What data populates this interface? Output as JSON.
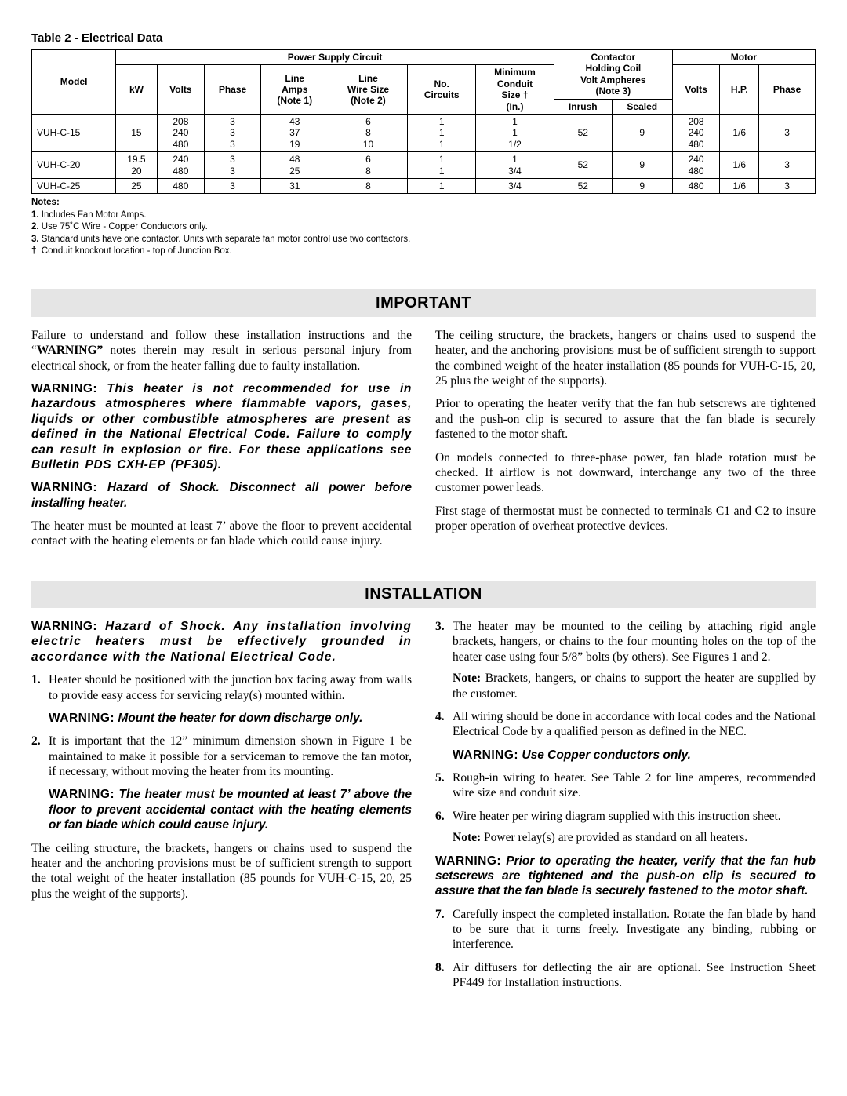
{
  "table": {
    "title": "Table 2 - Electrical Data",
    "headers": {
      "model": "Model",
      "psc": "Power Supply Circuit",
      "kw": "kW",
      "volts": "Volts",
      "phase": "Phase",
      "lineAmps": "Line\nAmps\n(Note 1)",
      "lineWire": "Line\nWire Size\n(Note 2)",
      "circuits": "No.\nCircuits",
      "conduit": "Minimum\nConduit\nSize †\n(In.)",
      "contactor": "Contactor\nHolding Coil\nVolt Ampheres\n(Note 3)",
      "inrush": "Inrush",
      "sealed": "Sealed",
      "motor": "Motor",
      "mvolts": "Volts",
      "hp": "H.P.",
      "mphase": "Phase"
    },
    "rows": [
      {
        "model": "VUH-C-15",
        "kw": "15",
        "volts": "208\n240\n480",
        "phase": "3\n3\n3",
        "amps": "43\n37\n19",
        "wire": "6\n8\n10",
        "circuits": "1\n1\n1",
        "conduit": "1\n1\n1/2",
        "inrush": "52",
        "sealed": "9",
        "mvolts": "208\n240\n480",
        "hp": "1/6",
        "mphase": "3"
      },
      {
        "model": "VUH-C-20",
        "kw": "19.5\n20",
        "volts": "240\n480",
        "phase": "3\n3",
        "amps": "48\n25",
        "wire": "6\n8",
        "circuits": "1\n1",
        "conduit": "1\n3/4",
        "inrush": "52",
        "sealed": "9",
        "mvolts": "240\n480",
        "hp": "1/6",
        "mphase": "3"
      },
      {
        "model": "VUH-C-25",
        "kw": "25",
        "volts": "480",
        "phase": "3",
        "amps": "31",
        "wire": "8",
        "circuits": "1",
        "conduit": "3/4",
        "inrush": "52",
        "sealed": "9",
        "mvolts": "480",
        "hp": "1/6",
        "mphase": "3"
      }
    ]
  },
  "notes": {
    "title": "Notes:",
    "n1": "Includes Fan Motor Amps.",
    "n2": "Use 75˚C Wire - Copper Conductors only.",
    "n3": "Standard units have one contactor. Units with separate fan motor control use two contactors.",
    "dagger": "Conduit knockout location - top of Junction Box."
  },
  "banners": {
    "important": "IMPORTANT",
    "installation": "INSTALLATION"
  },
  "labels": {
    "warning": "WARNING:",
    "note": "Note:"
  },
  "important": {
    "p1a": "Failure to understand and follow these installation instructions and the  “",
    "p1b": "WARNING”",
    "p1c": "  notes therein may result in serious personal injury from electrical shock, or from the heater falling due to faulty installation.",
    "w1": " This heater is not recommended for use in hazardous atmospheres where flammable vapors, gases, liquids or other combustible atmospheres are present as defined in the National Electrical Code. Failure to comply can result in explosion or fire. For these applications see Bulletin PDS CXH-EP (PF305).",
    "w2": " Hazard of Shock. Disconnect all power before installing heater.",
    "p2": "The heater must be mounted at least 7’ above the floor to prevent accidental contact with the heating elements or fan blade which could cause injury.",
    "p3": "The ceiling structure, the brackets, hangers or chains used to suspend the heater, and the anchoring provisions must be of sufficient strength to support the combined weight of the heater installation (85 pounds for VUH-C-15, 20, 25 plus the weight of the supports).",
    "p4": "Prior to operating the heater verify that the fan hub setscrews are tightened and the push-on clip is secured to assure that the fan blade is securely fastened to the motor shaft.",
    "p5": "On models connected to three-phase power, fan blade rotation must be checked. If airflow is not downward, interchange any two of the three customer power leads.",
    "p6": "First stage of thermostat must be connected to terminals C1 and C2 to insure proper operation of overheat protective devices."
  },
  "install": {
    "w_top": " Hazard of Shock. Any installation involving electric heaters must be effectively grounded in accordance with the National Electrical Code.",
    "li1": "Heater should be positioned with the junction box facing away from walls to provide easy access for servicing relay(s) mounted within.",
    "w_li1": " Mount the heater for down discharge only.",
    "li2": "It is important that the 12” minimum dimension shown in Figure 1 be maintained to make it possible for a serviceman to remove the fan motor, if necessary, without moving the heater from its mounting.",
    "w_li2": " The heater must be mounted at least 7’ above the floor to prevent accidental contact with the heating elements or fan blade which could cause injury.",
    "p_mid": "The ceiling structure, the brackets, hangers or chains used to suspend the heater and the anchoring provisions must be of sufficient strength to support the total weight of the heater installation (85 pounds for VUH-C-15, 20, 25 plus the weight of the supports).",
    "li3": "The heater may be mounted to the ceiling by attaching rigid angle brackets, hangers, or chains to the four mounting holes on the top of the heater case using four 5/8” bolts (by others). See Figures 1 and 2.",
    "note3": " Brackets, hangers, or chains to support the heater are supplied by the customer.",
    "li4": "All wiring should be done in accordance with local codes and the National Electrical Code by a qualified person as defined in the NEC.",
    "w_li4": " Use Copper conductors only.",
    "li5": "Rough-in wiring to heater. See Table 2 for line amperes, recommended wire size and conduit size.",
    "li6": "Wire heater per wiring diagram supplied with this instruction sheet.",
    "note6": " Power relay(s) are provided as standard on all heaters.",
    "w_li6": " Prior to operating the heater, verify that the fan hub setscrews are tightened and the push-on clip is secured to assure that the fan blade is securely fastened to the motor shaft.",
    "li7": "Carefully inspect the completed installation. Rotate the fan blade by hand to be sure that it turns freely. Investigate any binding, rubbing or interference.",
    "li8": "Air diffusers for deflecting the air are optional. See Instruction Sheet PF449 for Installation instructions."
  }
}
